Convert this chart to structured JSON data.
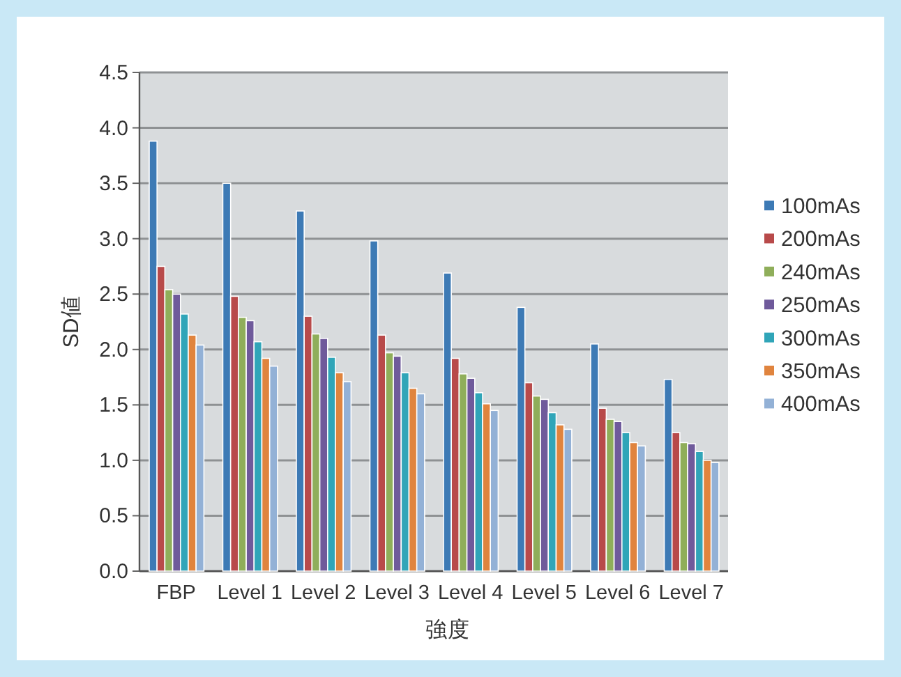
{
  "chart_data": {
    "type": "bar",
    "xlabel": "強度",
    "ylabel": "SD値",
    "categories": [
      "FBP",
      "Level 1",
      "Level 2",
      "Level 3",
      "Level 4",
      "Level 5",
      "Level 6",
      "Level 7"
    ],
    "series": [
      {
        "name": "100mAs",
        "color": "#3d7ab5",
        "values": [
          3.88,
          3.5,
          3.25,
          2.98,
          2.69,
          2.38,
          2.05,
          1.73
        ]
      },
      {
        "name": "200mAs",
        "color": "#b84a4a",
        "values": [
          2.75,
          2.48,
          2.3,
          2.13,
          1.92,
          1.7,
          1.47,
          1.25
        ]
      },
      {
        "name": "240mAs",
        "color": "#8fae5a",
        "values": [
          2.54,
          2.29,
          2.14,
          1.97,
          1.78,
          1.58,
          1.37,
          1.16
        ]
      },
      {
        "name": "250mAs",
        "color": "#6f5a9b",
        "values": [
          2.5,
          2.26,
          2.1,
          1.94,
          1.74,
          1.55,
          1.35,
          1.15
        ]
      },
      {
        "name": "300mAs",
        "color": "#30a5b8",
        "values": [
          2.32,
          2.07,
          1.93,
          1.79,
          1.61,
          1.43,
          1.25,
          1.08
        ]
      },
      {
        "name": "350mAs",
        "color": "#e0843e",
        "values": [
          2.13,
          1.92,
          1.79,
          1.65,
          1.51,
          1.32,
          1.16,
          1.0
        ]
      },
      {
        "name": "400mAs",
        "color": "#93b1d6",
        "values": [
          2.04,
          1.85,
          1.71,
          1.6,
          1.45,
          1.28,
          1.13,
          0.98
        ]
      }
    ],
    "ylim": [
      0,
      4.5
    ],
    "yticks": [
      {
        "value": 0,
        "label": "0.0"
      },
      {
        "value": 0.5,
        "label": "0.5"
      },
      {
        "value": 1,
        "label": "1.0"
      },
      {
        "value": 1.5,
        "label": "1.5"
      },
      {
        "value": 2,
        "label": "2.0"
      },
      {
        "value": 2.5,
        "label": "2.5"
      },
      {
        "value": 3,
        "label": "3.0"
      },
      {
        "value": 3.5,
        "label": "3.5"
      },
      {
        "value": 4,
        "label": "4.0"
      },
      {
        "value": 4.5,
        "label": "4.5"
      }
    ],
    "grid": "y",
    "legend": "right"
  }
}
